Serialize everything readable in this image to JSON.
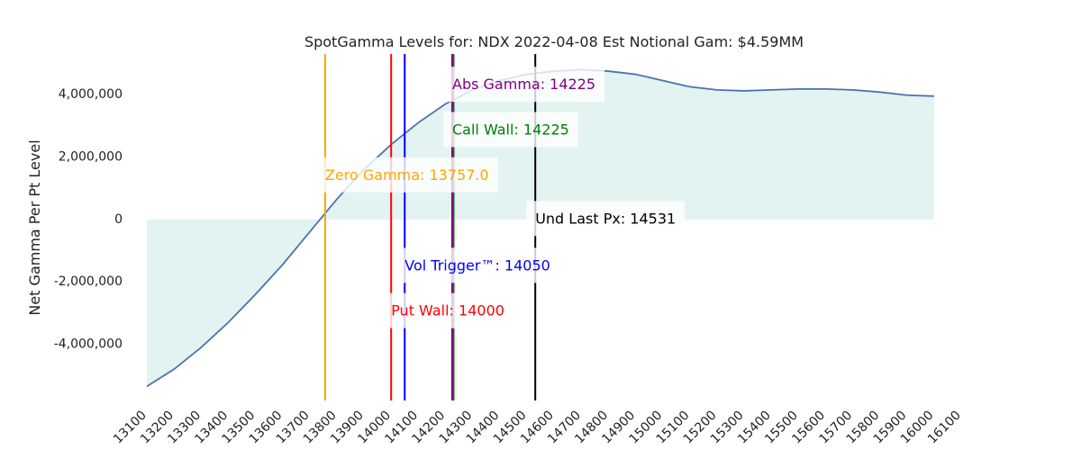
{
  "chart_data": {
    "type": "area",
    "title": "SpotGamma Levels for: NDX  2022-04-08 Est Notional Gam: $4.59MM",
    "xlabel": "",
    "ylabel": "Net Gamma Per Pt Level",
    "xlim": [
      13100,
      16100
    ],
    "ylim": [
      -5800000,
      5300000
    ],
    "x_ticks": [
      13100,
      13200,
      13300,
      13400,
      13500,
      13600,
      13700,
      13800,
      13900,
      14000,
      14100,
      14200,
      14300,
      14400,
      14500,
      14600,
      14700,
      14800,
      14900,
      15000,
      15100,
      15200,
      15300,
      15400,
      15500,
      15600,
      15700,
      15800,
      15900,
      16000,
      16100
    ],
    "y_ticks": [
      4000000,
      2000000,
      0,
      -2000000,
      -4000000
    ],
    "y_tick_labels": [
      "4,000,000",
      "2,000,000",
      "0",
      "-2,000,000",
      "-4,000,000"
    ],
    "grid": false,
    "series": [
      {
        "color": "#4c72b0",
        "fill_color": "#e2f3f1",
        "x": [
          13100,
          13200,
          13300,
          13400,
          13500,
          13600,
          13700,
          13800,
          13900,
          14000,
          14100,
          14200,
          14300,
          14400,
          14500,
          14600,
          14700,
          14800,
          14900,
          15000,
          15100,
          15200,
          15300,
          15400,
          15500,
          15600,
          15700,
          15800,
          15900,
          16000
        ],
        "y": [
          -5350000,
          -4800000,
          -4100000,
          -3300000,
          -2400000,
          -1450000,
          -400000,
          650000,
          1600000,
          2400000,
          3100000,
          3700000,
          4150000,
          4450000,
          4650000,
          4750000,
          4800000,
          4750000,
          4650000,
          4450000,
          4250000,
          4150000,
          4120000,
          4150000,
          4180000,
          4180000,
          4150000,
          4080000,
          3980000,
          3950000
        ]
      }
    ],
    "levels": [
      {
        "label": "Zero Gamma: 13757.0",
        "x": 13757.0,
        "color": "#ffa500",
        "label_y": 1400000
      },
      {
        "label": "Put Wall: 14000",
        "x": 14000,
        "color": "#ff0000",
        "label_y": -2950000
      },
      {
        "label": "Vol Trigger™: 14050",
        "x": 14050,
        "color": "#0000ff",
        "label_y": -1500000
      },
      {
        "label": "Call Wall: 14225",
        "x": 14225,
        "color": "#008000",
        "label_y": 2850000
      },
      {
        "label": "Abs Gamma: 14225",
        "x": 14225,
        "color": "#800080",
        "label_y": 4300000
      },
      {
        "label": "Und Last Px: 14531",
        "x": 14531,
        "color": "#000000",
        "label_y": 0
      }
    ]
  }
}
